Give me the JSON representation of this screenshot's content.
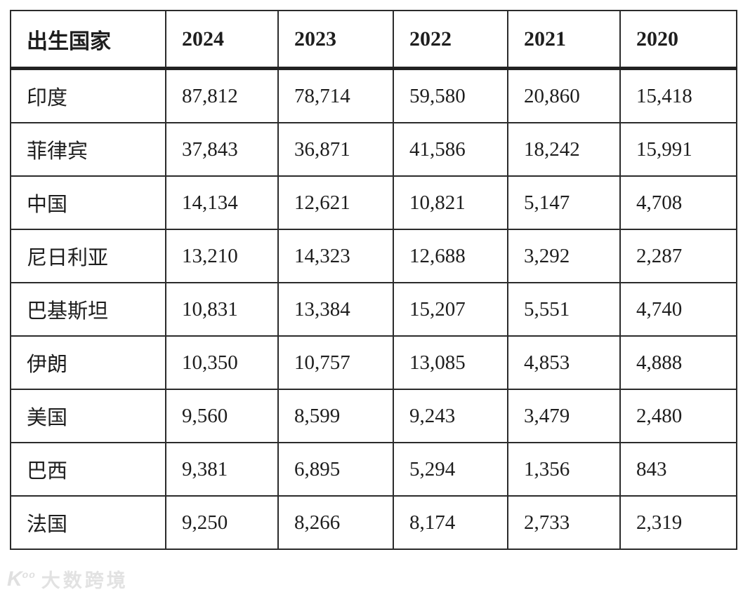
{
  "colors": {
    "background": "#ffffff",
    "border": "#2b2b2b",
    "header_separator": "#222222",
    "text": "#1e1e1e",
    "watermark": "#e2e2e2"
  },
  "chart_data": {
    "type": "table",
    "title": "",
    "columns": [
      "出生国家",
      "2024",
      "2023",
      "2022",
      "2021",
      "2020"
    ],
    "rows": [
      {
        "country": "印度",
        "values": [
          "87,812",
          "78,714",
          "59,580",
          "20,860",
          "15,418"
        ]
      },
      {
        "country": "菲律宾",
        "values": [
          "37,843",
          "36,871",
          "41,586",
          "18,242",
          "15,991"
        ]
      },
      {
        "country": "中国",
        "values": [
          "14,134",
          "12,621",
          "10,821",
          "5,147",
          "4,708"
        ]
      },
      {
        "country": "尼日利亚",
        "values": [
          "13,210",
          "14,323",
          "12,688",
          "3,292",
          "2,287"
        ]
      },
      {
        "country": "巴基斯坦",
        "values": [
          "10,831",
          "13,384",
          "15,207",
          "5,551",
          "4,740"
        ]
      },
      {
        "country": "伊朗",
        "values": [
          "10,350",
          "10,757",
          "13,085",
          "4,853",
          "4,888"
        ]
      },
      {
        "country": "美国",
        "values": [
          "9,560",
          "8,599",
          "9,243",
          "3,479",
          "2,480"
        ]
      },
      {
        "country": "巴西",
        "values": [
          "9,381",
          "6,895",
          "5,294",
          "1,356",
          "843"
        ]
      },
      {
        "country": "法国",
        "values": [
          "9,250",
          "8,266",
          "8,174",
          "2,733",
          "2,319"
        ]
      }
    ]
  },
  "watermark": {
    "logo": "K°°",
    "text": "大数跨境"
  }
}
